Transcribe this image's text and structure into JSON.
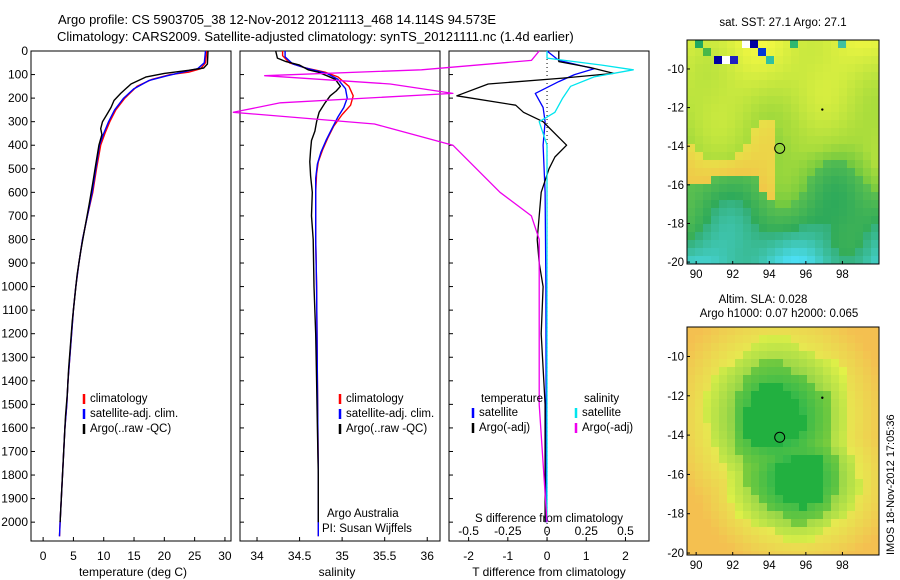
{
  "title_line1": "Argo profile: CS 5903705_38 12-Nov-2012 20121113_468 14.114S 94.573E",
  "title_line2": "Climatology: CARS2009. Satellite-adjusted climatology: synTS_20121111.nc (1.4d earlier)",
  "credit_stamp": "IMOS 18-Nov-2012 17:05:36",
  "colors": {
    "climatology": "#ff0000",
    "satellite": "#0000ff",
    "argo": "#000000",
    "sal_satellite": "#00e5ee",
    "sal_argo": "#ee00ee"
  },
  "chart_data": [
    {
      "id": "temperature",
      "type": "line",
      "xlabel": "temperature (deg C)",
      "ylabel": "",
      "xlim": [
        -2,
        31
      ],
      "ylim": [
        2080,
        0
      ],
      "xticks": [
        0,
        5,
        10,
        15,
        20,
        25,
        30
      ],
      "yticks": [
        0,
        100,
        200,
        300,
        400,
        500,
        600,
        700,
        800,
        900,
        1000,
        1100,
        1200,
        1300,
        1400,
        1500,
        1600,
        1700,
        1800,
        1900,
        2000
      ],
      "legend": [
        "climatology",
        "satellite-adj. clim.",
        "Argo(..raw -QC)"
      ],
      "series": [
        {
          "name": "climatology",
          "color": "#ff0000",
          "points": [
            [
              27,
              0
            ],
            [
              26.8,
              50
            ],
            [
              26,
              75
            ],
            [
              24,
              90
            ],
            [
              21,
              100
            ],
            [
              18,
              120
            ],
            [
              15.5,
              150
            ],
            [
              13.5,
              200
            ],
            [
              12,
              250
            ],
            [
              11,
              300
            ],
            [
              10.2,
              350
            ],
            [
              9.5,
              400
            ],
            [
              8.8,
              500
            ],
            [
              8.2,
              600
            ],
            [
              7.3,
              700
            ],
            [
              6.5,
              800
            ],
            [
              5.9,
              900
            ],
            [
              5.4,
              1000
            ],
            [
              5,
              1100
            ],
            [
              4.7,
              1200
            ],
            [
              4.4,
              1300
            ],
            [
              4.1,
              1400
            ],
            [
              3.9,
              1500
            ],
            [
              3.6,
              1600
            ],
            [
              3.4,
              1700
            ],
            [
              3.2,
              1800
            ],
            [
              3,
              1900
            ],
            [
              2.8,
              2000
            ],
            [
              2.7,
              2060
            ]
          ]
        },
        {
          "name": "satellite-adj. clim.",
          "color": "#0000ff",
          "points": [
            [
              26.8,
              0
            ],
            [
              26.6,
              50
            ],
            [
              25.5,
              75
            ],
            [
              23,
              90
            ],
            [
              20.5,
              105
            ],
            [
              17.5,
              125
            ],
            [
              15,
              160
            ],
            [
              13.3,
              200
            ],
            [
              11.8,
              250
            ],
            [
              10.8,
              300
            ],
            [
              10,
              350
            ],
            [
              9.3,
              400
            ],
            [
              8.7,
              500
            ],
            [
              8.1,
              600
            ],
            [
              7.3,
              700
            ],
            [
              6.5,
              800
            ],
            [
              5.9,
              900
            ],
            [
              5.4,
              1000
            ],
            [
              5,
              1100
            ],
            [
              4.7,
              1200
            ],
            [
              4.4,
              1300
            ],
            [
              4.1,
              1400
            ],
            [
              3.9,
              1500
            ],
            [
              3.6,
              1600
            ],
            [
              3.4,
              1700
            ],
            [
              3.2,
              1800
            ],
            [
              3,
              1900
            ],
            [
              2.8,
              2000
            ],
            [
              2.7,
              2060
            ]
          ]
        },
        {
          "name": "Argo(..raw -QC)",
          "color": "#000000",
          "points": [
            [
              27.2,
              0
            ],
            [
              27.1,
              55
            ],
            [
              26.5,
              72
            ],
            [
              24,
              82
            ],
            [
              20,
              95
            ],
            [
              17,
              110
            ],
            [
              14.5,
              140
            ],
            [
              12.8,
              180
            ],
            [
              11.7,
              210
            ],
            [
              11.2,
              240
            ],
            [
              10.5,
              270
            ],
            [
              9.8,
              300
            ],
            [
              9.5,
              330
            ],
            [
              9.7,
              355
            ],
            [
              9.2,
              400
            ],
            [
              8.7,
              480
            ],
            [
              8.2,
              560
            ],
            [
              7.6,
              650
            ],
            [
              6.9,
              750
            ],
            [
              6.2,
              850
            ],
            [
              5.6,
              950
            ],
            [
              5.2,
              1050
            ],
            [
              4.8,
              1150
            ],
            [
              4.5,
              1250
            ],
            [
              4.2,
              1350
            ],
            [
              4,
              1450
            ],
            [
              3.7,
              1550
            ],
            [
              3.5,
              1650
            ],
            [
              3.3,
              1750
            ],
            [
              3.1,
              1850
            ],
            [
              2.9,
              1950
            ],
            [
              2.8,
              2000
            ]
          ]
        }
      ]
    },
    {
      "id": "salinity",
      "type": "line",
      "xlabel": "salinity",
      "ylabel": "",
      "xlim": [
        33.8,
        36.15
      ],
      "ylim": [
        2080,
        0
      ],
      "xticks": [
        34,
        34.5,
        35,
        35.5,
        36
      ],
      "legend": [
        "climatology",
        "satellite-adj. clim.",
        "Argo(..raw -QC)"
      ],
      "annotation": [
        "Argo Australia",
        "PI: Susan Wijffels"
      ],
      "series": [
        {
          "name": "climatology",
          "color": "#ff0000",
          "points": [
            [
              34.3,
              0
            ],
            [
              34.3,
              20
            ],
            [
              34.38,
              50
            ],
            [
              34.55,
              70
            ],
            [
              34.8,
              90
            ],
            [
              34.95,
              110
            ],
            [
              35.08,
              150
            ],
            [
              35.13,
              190
            ],
            [
              35.1,
              230
            ],
            [
              35,
              270
            ],
            [
              34.9,
              320
            ],
            [
              34.83,
              370
            ],
            [
              34.77,
              420
            ],
            [
              34.72,
              470
            ],
            [
              34.7,
              520
            ],
            [
              34.69,
              600
            ],
            [
              34.69,
              800
            ],
            [
              34.7,
              1000
            ],
            [
              34.71,
              1400
            ],
            [
              34.72,
              1800
            ],
            [
              34.72,
              2060
            ]
          ]
        },
        {
          "name": "satellite-adj. clim.",
          "color": "#0000ff",
          "points": [
            [
              34.33,
              0
            ],
            [
              34.33,
              25
            ],
            [
              34.42,
              55
            ],
            [
              34.6,
              75
            ],
            [
              34.82,
              95
            ],
            [
              34.95,
              120
            ],
            [
              35.04,
              160
            ],
            [
              35.06,
              200
            ],
            [
              35.02,
              240
            ],
            [
              34.95,
              280
            ],
            [
              34.88,
              330
            ],
            [
              34.81,
              380
            ],
            [
              34.75,
              430
            ],
            [
              34.71,
              480
            ],
            [
              34.69,
              540
            ],
            [
              34.69,
              800
            ],
            [
              34.7,
              1000
            ],
            [
              34.71,
              1400
            ],
            [
              34.72,
              1800
            ],
            [
              34.72,
              2060
            ]
          ]
        },
        {
          "name": "Argo(..raw -QC)",
          "color": "#000000",
          "points": [
            [
              34.22,
              0
            ],
            [
              34.24,
              30
            ],
            [
              34.34,
              45
            ],
            [
              34.5,
              60
            ],
            [
              34.6,
              80
            ],
            [
              34.72,
              90
            ],
            [
              34.82,
              105
            ],
            [
              34.92,
              120
            ],
            [
              34.98,
              150
            ],
            [
              34.93,
              170
            ],
            [
              34.86,
              190
            ],
            [
              34.8,
              220
            ],
            [
              34.73,
              260
            ],
            [
              34.7,
              300
            ],
            [
              34.68,
              340
            ],
            [
              34.64,
              380
            ],
            [
              34.63,
              420
            ],
            [
              34.62,
              470
            ],
            [
              34.63,
              530
            ],
            [
              34.65,
              600
            ],
            [
              34.64,
              700
            ],
            [
              34.66,
              800
            ],
            [
              34.67,
              1000
            ],
            [
              34.69,
              1200
            ],
            [
              34.7,
              1400
            ],
            [
              34.71,
              1600
            ],
            [
              34.72,
              1800
            ],
            [
              34.72,
              2000
            ]
          ]
        }
      ]
    },
    {
      "id": "difference",
      "type": "line",
      "xlabel": "T difference from climatology",
      "xlabel2": "S difference from climatology",
      "xlim": [
        -2.5,
        2.6
      ],
      "ylim": [
        2080,
        0
      ],
      "xticks": [
        -2,
        -1,
        0,
        1,
        2
      ],
      "xticks_s_values": [
        -0.5,
        -0.25,
        0,
        0.25,
        0.5
      ],
      "xticks_s": [
        "-0.5",
        "-0.25",
        "0",
        "0.25",
        "0.5"
      ],
      "legend_temp_title": "temperature",
      "legend_sal_title": "salinity",
      "legend_temp": [
        "satellite",
        "Argo(-adj)"
      ],
      "legend_sal": [
        "satellite",
        "Argo(-adj)"
      ],
      "series": [
        {
          "name": "satellite",
          "kind": "T",
          "color": "#0000ff",
          "points": [
            [
              0,
              0
            ],
            [
              0.3,
              40
            ],
            [
              1.2,
              75
            ],
            [
              0.7,
              100
            ],
            [
              0.3,
              130
            ],
            [
              -0.3,
              180
            ],
            [
              -0.1,
              240
            ],
            [
              -0.05,
              300
            ],
            [
              -0.1,
              400
            ],
            [
              -0.05,
              600
            ],
            [
              -0.03,
              1000
            ],
            [
              -0.02,
              2000
            ]
          ]
        },
        {
          "name": "Argo(-adj)",
          "kind": "T",
          "color": "#000000",
          "points": [
            [
              0.3,
              0
            ],
            [
              0.3,
              45
            ],
            [
              1.1,
              70
            ],
            [
              1.7,
              95
            ],
            [
              0.4,
              115
            ],
            [
              -1.5,
              140
            ],
            [
              -2.3,
              190
            ],
            [
              -0.8,
              230
            ],
            [
              -0.6,
              260
            ],
            [
              -0.1,
              300
            ],
            [
              0.5,
              400
            ],
            [
              0.2,
              450
            ],
            [
              0.05,
              500
            ],
            [
              -0.15,
              600
            ],
            [
              -0.2,
              700
            ],
            [
              -0.25,
              800
            ],
            [
              -0.2,
              900
            ],
            [
              -0.1,
              1000
            ],
            [
              -0.15,
              1200
            ],
            [
              -0.05,
              1500
            ],
            [
              -0.05,
              2000
            ]
          ]
        },
        {
          "name": "satellite",
          "kind": "S",
          "color": "#00e5ee",
          "points": [
            [
              0,
              0
            ],
            [
              0,
              30
            ],
            [
              0.35,
              60
            ],
            [
              0.55,
              80
            ],
            [
              0.3,
              110
            ],
            [
              0.15,
              150
            ],
            [
              0.1,
              200
            ],
            [
              0.05,
              260
            ],
            [
              -0.05,
              300
            ],
            [
              0,
              400
            ],
            [
              0,
              600
            ],
            [
              0,
              1000
            ],
            [
              0,
              2000
            ]
          ]
        },
        {
          "name": "Argo(-adj)",
          "kind": "S",
          "color": "#ee00ee",
          "points": [
            [
              -0.05,
              0
            ],
            [
              -0.1,
              40
            ],
            [
              -0.8,
              80
            ],
            [
              -1.8,
              105
            ],
            [
              -1,
              140
            ],
            [
              -0.6,
              180
            ],
            [
              -1.7,
              220
            ],
            [
              -2,
              260
            ],
            [
              -1.1,
              310
            ],
            [
              -0.6,
              400
            ],
            [
              -0.3,
              600
            ],
            [
              -0.1,
              700
            ],
            [
              -0.05,
              800
            ],
            [
              -0.05,
              1000
            ],
            [
              -0.05,
              1500
            ],
            [
              0,
              2000
            ]
          ]
        }
      ]
    },
    {
      "id": "sst_map",
      "type": "heatmap",
      "title": "sat. SST: 27.1  Argo: 27.1",
      "xlim": [
        89.5,
        100
      ],
      "ylim": [
        -20.1,
        -8.5
      ],
      "xticks": [
        90,
        92,
        94,
        96,
        98
      ],
      "yticks": [
        -10,
        -12,
        -14,
        -16,
        -18,
        -20
      ],
      "argo_position": [
        94.57,
        -14.11
      ],
      "dot_position": [
        96.9,
        -12.1
      ]
    },
    {
      "id": "sla_map",
      "type": "heatmap",
      "title_line1": "Altim. SLA: 0.028",
      "title_line2": "Argo h1000: 0.07 h2000: 0.065",
      "xlim": [
        89.5,
        100
      ],
      "ylim": [
        -20.1,
        -8.5
      ],
      "xticks": [
        90,
        92,
        94,
        96,
        98
      ],
      "yticks": [
        -10,
        -12,
        -14,
        -16,
        -18,
        -20
      ],
      "argo_position": [
        94.57,
        -14.11
      ],
      "dot_position": [
        96.9,
        -12.1
      ]
    }
  ]
}
